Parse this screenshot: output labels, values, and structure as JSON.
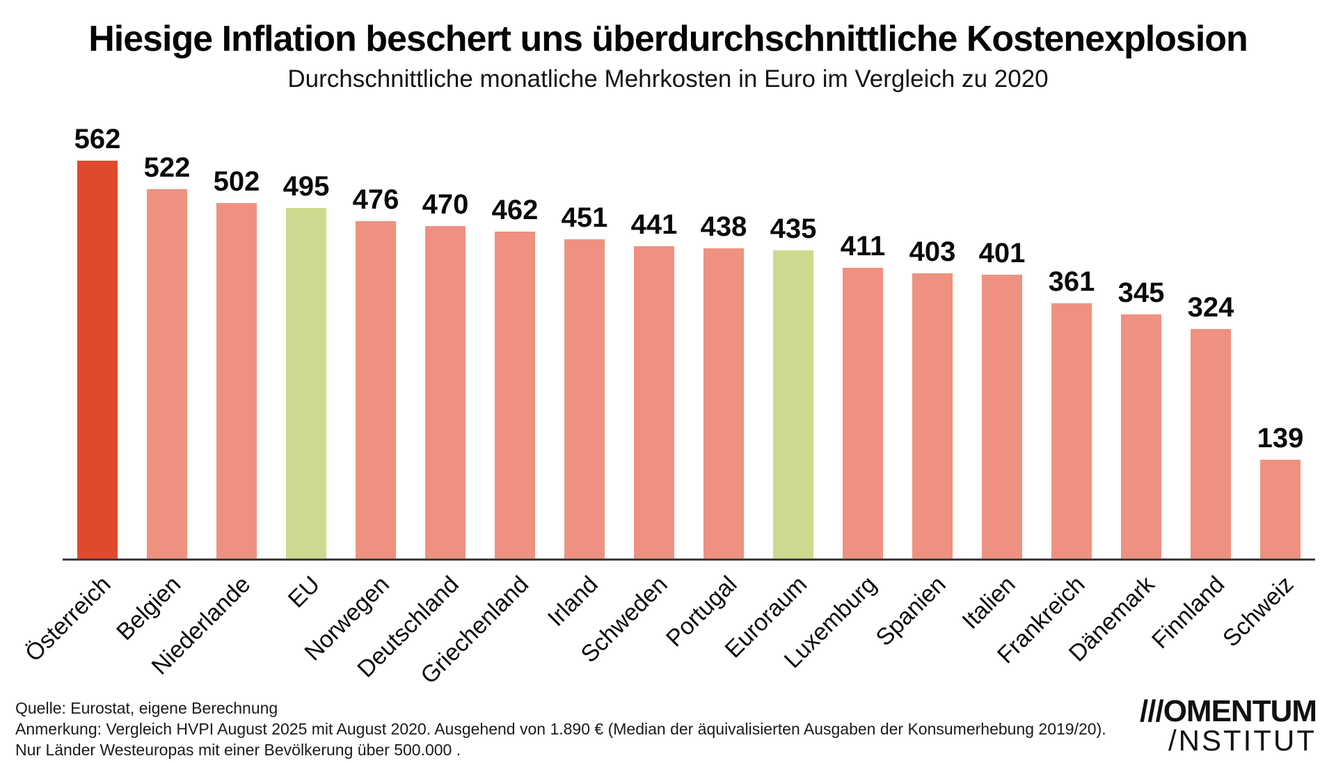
{
  "chart_data": {
    "type": "bar",
    "title": "Hiesige Inflation beschert uns überdurchschnittliche Kostenexplosion",
    "subtitle": "Durchschnittliche monatliche Mehrkosten in Euro im Vergleich zu 2020",
    "categories": [
      "Österreich",
      "Belgien",
      "Niederlande",
      "EU",
      "Norwegen",
      "Deutschland",
      "Griechenland",
      "Irland",
      "Schweden",
      "Portugal",
      "Euroraum",
      "Luxemburg",
      "Spanien",
      "Italien",
      "Frankreich",
      "Dänemark",
      "Finnland",
      "Schweiz"
    ],
    "values": [
      562,
      522,
      502,
      495,
      476,
      470,
      462,
      451,
      441,
      438,
      435,
      411,
      403,
      401,
      361,
      345,
      324,
      139
    ],
    "bar_colors": [
      "#E04A2C",
      "#EF9180",
      "#EF9180",
      "#CBDA8E",
      "#EF9180",
      "#EF9180",
      "#EF9180",
      "#EF9180",
      "#EF9180",
      "#EF9180",
      "#CBDA8E",
      "#EF9180",
      "#EF9180",
      "#EF9180",
      "#EF9180",
      "#EF9180",
      "#EF9180",
      "#EF9180"
    ],
    "colors": {
      "default_bar": "#EF9180",
      "highlight_austria": "#E04A2C",
      "highlight_eu_aggregates": "#CBDA8E",
      "axis_line": "#3c3c3c",
      "text": "#0a0a0a"
    },
    "xlabel": "",
    "ylabel": "",
    "ylim": [
      0,
      625
    ],
    "grid": false,
    "legend": false,
    "value_labels": true,
    "x_tick_rotation_deg": 45
  },
  "footer": {
    "source": "Quelle: Eurostat, eigene Berechnung",
    "note1": "Anmerkung: Vergleich HVPI August 2025 mit August 2020.  Ausgehend von 1.890 € (Median der äquivalisierten Ausgaben der Konsumerhebung 2019/20).",
    "note2": "Nur Länder Westeuropas mit einer Bevölkerung über 500.000 .",
    "logo_line1": "///OMENTUM",
    "logo_line2": "/NSTITUT"
  }
}
